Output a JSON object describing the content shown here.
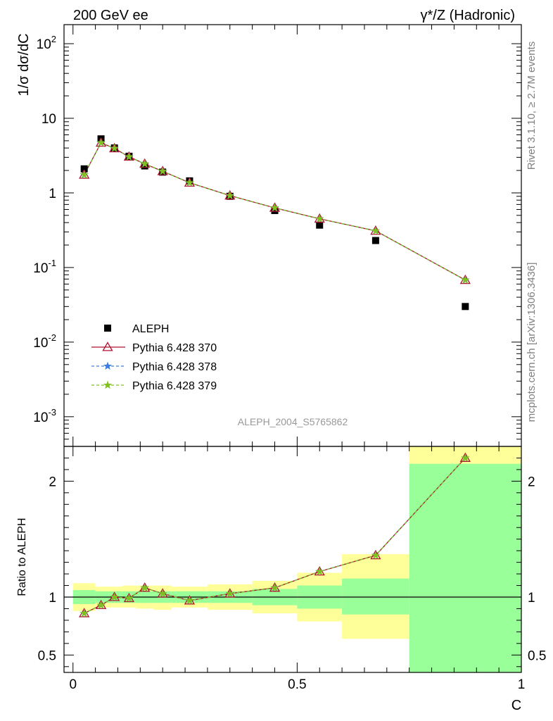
{
  "header": {
    "left_title": "200 GeV ee",
    "right_title": "γ*/Z (Hadronic)"
  },
  "side_labels": {
    "rivet": "Rivet 3.1.10, ≥ 2.7M events",
    "mcplots": "mcplots.cern.ch [arXiv:1306.3436]"
  },
  "analysis_id": "ALEPH_2004_S5765862",
  "colors": {
    "band_inner": "#99ff99",
    "band_outer": "#ffff99",
    "pythia370": "#b01030",
    "pythia378": "#3a7de0",
    "pythia379": "#80c020"
  },
  "chart_data": [
    {
      "type": "scatter",
      "panel": "main",
      "ylabel": "1/σ  dσ/dC",
      "yscale": "log",
      "ylim": [
        0.0004,
        180
      ],
      "xlim": [
        -0.02,
        1.0
      ],
      "y_tick_labels": [
        "10^-3",
        "10^-2",
        "10^-1",
        "1",
        "10",
        "10^2"
      ],
      "legend_position": "middle-left",
      "x": [
        0.025,
        0.0625,
        0.0925,
        0.125,
        0.16,
        0.2,
        0.26,
        0.35,
        0.45,
        0.55,
        0.675,
        0.875
      ],
      "series": [
        {
          "name": "ALEPH",
          "marker": "filled-square",
          "values": [
            2.1,
            5.3,
            4.0,
            3.1,
            2.3,
            1.9,
            1.45,
            0.9,
            0.58,
            0.37,
            0.23,
            0.03
          ]
        },
        {
          "name": "Pythia 6.428 370",
          "marker": "open-triangle",
          "style": "solid",
          "values": [
            1.75,
            4.7,
            3.95,
            3.05,
            2.45,
            1.95,
            1.37,
            0.92,
            0.63,
            0.45,
            0.31,
            0.068
          ]
        },
        {
          "name": "Pythia 6.428 378",
          "marker": "star",
          "style": "dashed",
          "values": [
            1.75,
            4.7,
            3.95,
            3.05,
            2.45,
            1.95,
            1.37,
            0.92,
            0.63,
            0.45,
            0.31,
            0.068
          ]
        },
        {
          "name": "Pythia 6.428 379",
          "marker": "star",
          "style": "dashed",
          "values": [
            1.75,
            4.7,
            3.95,
            3.05,
            2.45,
            1.95,
            1.37,
            0.92,
            0.63,
            0.45,
            0.31,
            0.068
          ]
        }
      ]
    },
    {
      "type": "line",
      "panel": "ratio",
      "xlabel": "C",
      "ylabel": "Ratio to ALEPH",
      "ylim": [
        0.35,
        2.3
      ],
      "xlim": [
        -0.02,
        1.0
      ],
      "x_ticks": [
        0,
        0.5,
        1
      ],
      "x_tick_labels": [
        "0",
        "0.5",
        "1"
      ],
      "y_ticks": [
        0.5,
        1,
        2
      ],
      "y_tick_labels": [
        "0.5",
        "1",
        "2"
      ],
      "reference_line": 1,
      "bins": [
        {
          "lo": 0.0,
          "hi": 0.05,
          "inner": [
            0.94,
            1.06
          ],
          "outer": [
            0.88,
            1.12
          ]
        },
        {
          "lo": 0.05,
          "hi": 0.075,
          "inner": [
            0.95,
            1.05
          ],
          "outer": [
            0.91,
            1.09
          ]
        },
        {
          "lo": 0.075,
          "hi": 0.11,
          "inner": [
            0.95,
            1.05
          ],
          "outer": [
            0.91,
            1.09
          ]
        },
        {
          "lo": 0.11,
          "hi": 0.14,
          "inner": [
            0.95,
            1.05
          ],
          "outer": [
            0.91,
            1.1
          ]
        },
        {
          "lo": 0.14,
          "hi": 0.18,
          "inner": [
            0.95,
            1.05
          ],
          "outer": [
            0.9,
            1.1
          ]
        },
        {
          "lo": 0.18,
          "hi": 0.22,
          "inner": [
            0.95,
            1.05
          ],
          "outer": [
            0.89,
            1.1
          ]
        },
        {
          "lo": 0.22,
          "hi": 0.3,
          "inner": [
            0.95,
            1.05
          ],
          "outer": [
            0.91,
            1.09
          ]
        },
        {
          "lo": 0.3,
          "hi": 0.4,
          "inner": [
            0.95,
            1.05
          ],
          "outer": [
            0.89,
            1.11
          ]
        },
        {
          "lo": 0.4,
          "hi": 0.5,
          "inner": [
            0.93,
            1.07
          ],
          "outer": [
            0.86,
            1.14
          ]
        },
        {
          "lo": 0.5,
          "hi": 0.6,
          "inner": [
            0.9,
            1.1
          ],
          "outer": [
            0.79,
            1.21
          ]
        },
        {
          "lo": 0.6,
          "hi": 0.75,
          "inner": [
            0.85,
            1.16
          ],
          "outer": [
            0.64,
            1.37
          ]
        },
        {
          "lo": 0.75,
          "hi": 1.0,
          "inner": [
            0.35,
            2.15
          ],
          "outer": [
            0.35,
            2.3
          ]
        }
      ],
      "x": [
        0.025,
        0.0625,
        0.0925,
        0.125,
        0.16,
        0.2,
        0.26,
        0.35,
        0.45,
        0.55,
        0.675,
        0.875
      ],
      "series": [
        {
          "name": "Pythia 6.428 370",
          "values": [
            0.86,
            0.93,
            1.0,
            0.99,
            1.08,
            1.03,
            0.97,
            1.03,
            1.08,
            1.22,
            1.36,
            2.2
          ]
        },
        {
          "name": "Pythia 6.428 378",
          "values": [
            0.86,
            0.93,
            1.0,
            0.99,
            1.08,
            1.03,
            0.97,
            1.03,
            1.08,
            1.22,
            1.36,
            2.2
          ]
        },
        {
          "name": "Pythia 6.428 379",
          "values": [
            0.86,
            0.93,
            1.0,
            0.99,
            1.08,
            1.03,
            0.97,
            1.03,
            1.08,
            1.22,
            1.36,
            2.2
          ]
        }
      ]
    }
  ]
}
